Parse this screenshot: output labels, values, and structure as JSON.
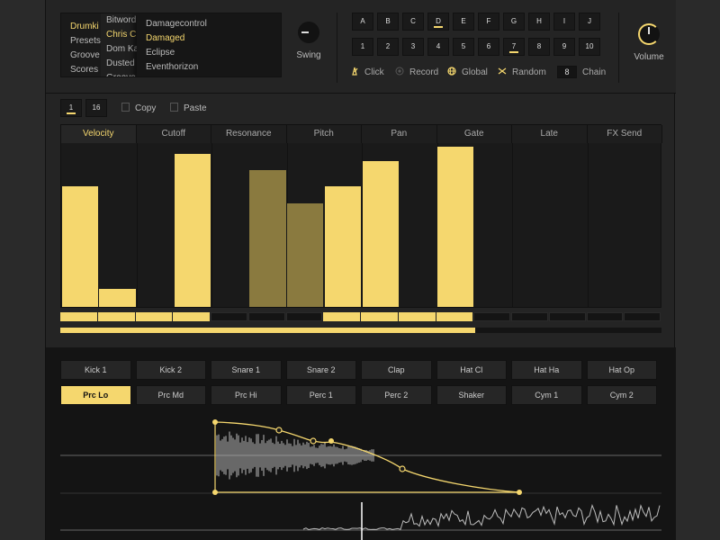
{
  "browser": {
    "col1": [
      "Drumki",
      "Presets",
      "Groove",
      "Scores"
    ],
    "col1_selected": 0,
    "col2": [
      "Bitword",
      "Chris C",
      "Dom Ka",
      "Dusted",
      "Groove"
    ],
    "col2_selected": 1,
    "col3": [
      "Damagecontrol",
      "Damaged",
      "Eclipse",
      "Eventhorizon"
    ],
    "col3_selected": 1
  },
  "swing": {
    "label": "Swing"
  },
  "volume": {
    "label": "Volume"
  },
  "patterns": {
    "letters": [
      "A",
      "B",
      "C",
      "D",
      "E",
      "F",
      "G",
      "H",
      "I",
      "J"
    ],
    "letter_active": "D",
    "numbers": [
      "1",
      "2",
      "3",
      "4",
      "5",
      "6",
      "7",
      "8",
      "9",
      "10"
    ],
    "number_active": "7"
  },
  "options": {
    "click": "Click",
    "record": "Record",
    "global": "Global",
    "random": "Random",
    "chain_value": "8",
    "chain": "Chain"
  },
  "seqbar": {
    "length_a": "1",
    "length_b": "16",
    "copy": "Copy",
    "paste": "Paste"
  },
  "param_tabs": [
    "Velocity",
    "Cutoff",
    "Resonance",
    "Pitch",
    "Pan",
    "Gate",
    "Late",
    "FX Send"
  ],
  "param_tab_active": 0,
  "steps": {
    "values": [
      0.755,
      0.11,
      0.0,
      0.957,
      0.0,
      0.853,
      0.645,
      0.755,
      0.908,
      0.0,
      1.0,
      0.0,
      0.0,
      0.0,
      0.0,
      0.0
    ],
    "dim": [
      false,
      false,
      false,
      false,
      false,
      true,
      true,
      false,
      false,
      false,
      false,
      false,
      false,
      false,
      false,
      false
    ],
    "on": [
      true,
      true,
      true,
      true,
      false,
      false,
      false,
      true,
      true,
      true,
      true,
      false,
      false,
      false,
      false,
      false
    ],
    "progress": 0.69
  },
  "drums": {
    "row1": [
      "Kick 1",
      "Kick 2",
      "Snare 1",
      "Snare 2",
      "Clap",
      "Hat Cl",
      "Hat Ha",
      "Hat Op"
    ],
    "row2": [
      "Prc Lo",
      "Prc Md",
      "Prc Hi",
      "Perc 1",
      "Perc 2",
      "Shaker",
      "Cym 1",
      "Cym 2"
    ],
    "selected": "Prc Lo"
  },
  "colors": {
    "accent": "#f5d76e",
    "dim_accent": "#8a7a3f",
    "background": "#242424"
  },
  "icons": {
    "click": "metronome-icon",
    "record": "record-icon",
    "global": "globe-icon",
    "random": "shuffle-icon",
    "copy": "copy-icon",
    "paste": "paste-icon"
  }
}
